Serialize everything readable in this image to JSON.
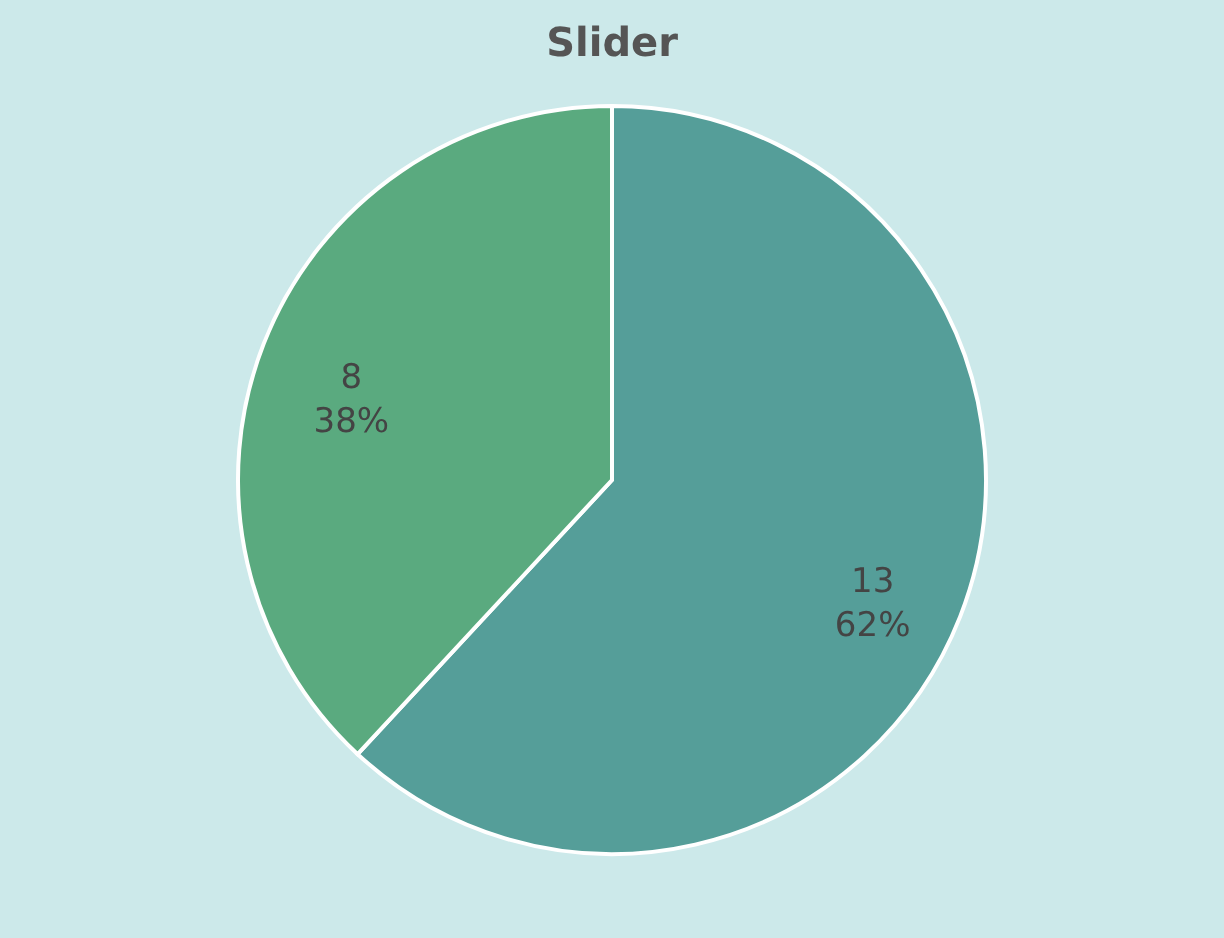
{
  "chart_data": {
    "type": "pie",
    "title": "Slider",
    "categories": [
      null,
      null
    ],
    "values": [
      13,
      8
    ],
    "colors": [
      "#559e99",
      "#5aaa7f"
    ],
    "value_labels": [
      "13\n62%",
      "8\n38%"
    ]
  }
}
